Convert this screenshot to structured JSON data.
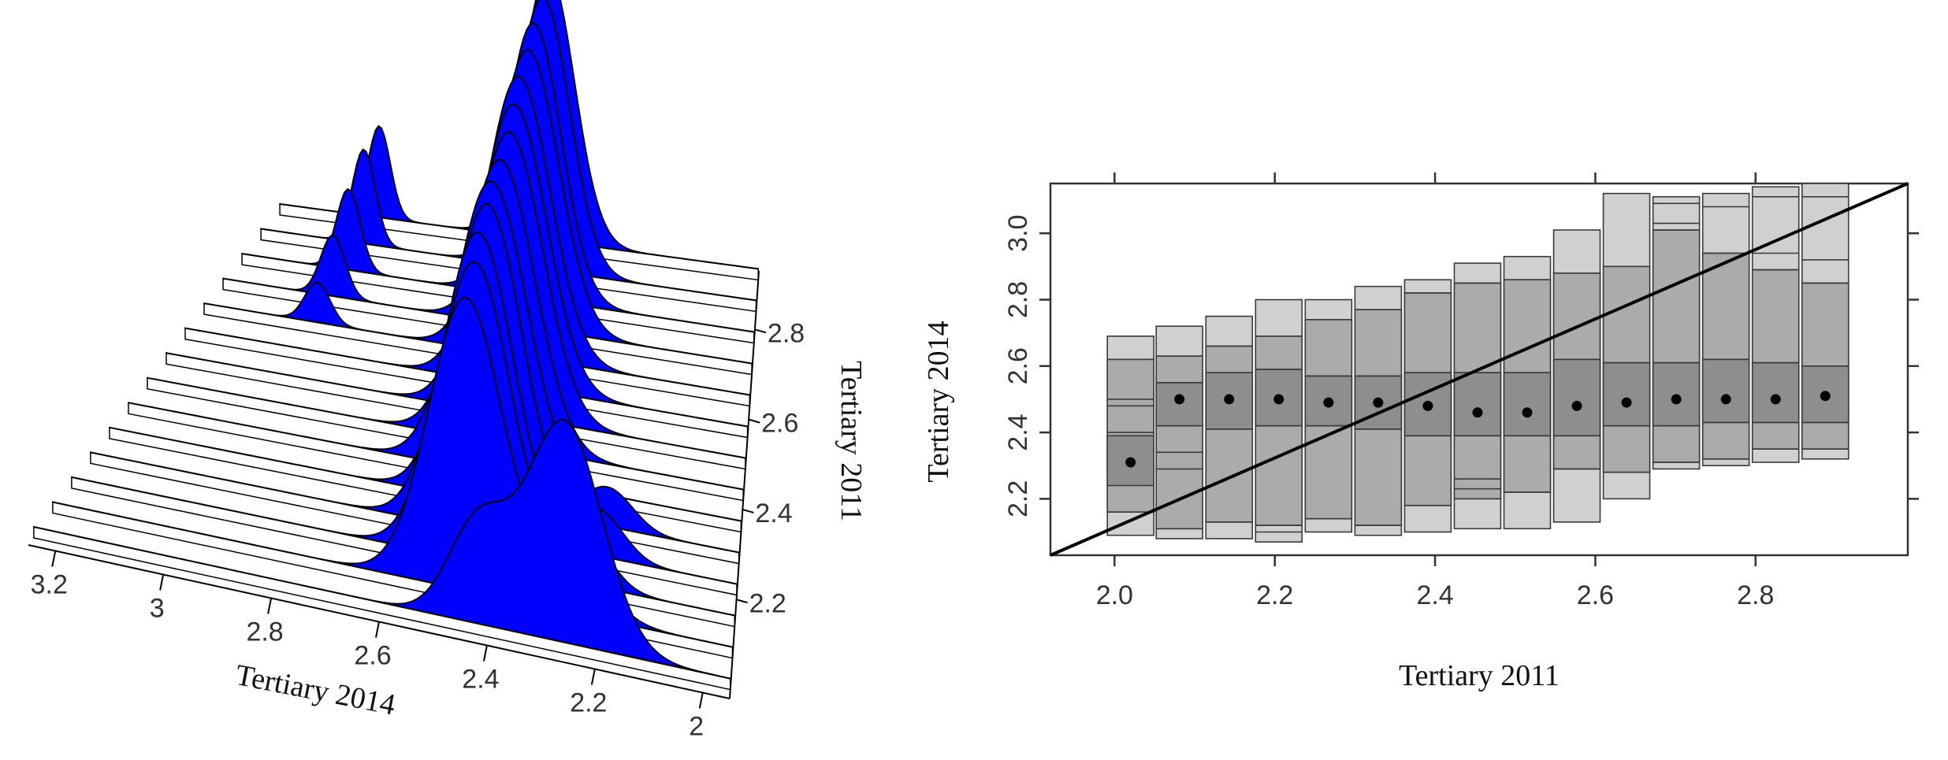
{
  "chart_data": [
    {
      "type": "area",
      "subtype": "3d-perspective-ridgeline",
      "title": "",
      "xlabel": "Tertiary 2014",
      "ylabel": "Tertiary 2011",
      "x_ticks": [
        "3.2",
        "3",
        "2.8",
        "2.6",
        "2.4",
        "2.2",
        "2"
      ],
      "y_ticks": [
        "2.2",
        "2.4",
        "2.6",
        "2.8"
      ],
      "x_range": [
        1.95,
        3.25
      ],
      "y_range": [
        1.98,
        2.93
      ],
      "fill_color": "#0000ff",
      "ridge_count": 14,
      "ridges": [
        {
          "tertiary_2011": 2.0,
          "components": [
            [
              2.42,
              0.055,
              0.28
            ],
            [
              2.26,
              0.07,
              0.62
            ]
          ]
        },
        {
          "tertiary_2011": 2.07,
          "components": [
            [
              2.46,
              0.07,
              0.84
            ],
            [
              2.26,
              0.06,
              0.2
            ]
          ]
        },
        {
          "tertiary_2011": 2.14,
          "components": [
            [
              2.46,
              0.07,
              0.88
            ],
            [
              2.25,
              0.05,
              0.16
            ]
          ]
        },
        {
          "tertiary_2011": 2.21,
          "components": [
            [
              2.47,
              0.07,
              0.9
            ],
            [
              2.23,
              0.05,
              0.14
            ]
          ]
        },
        {
          "tertiary_2011": 2.28,
          "components": [
            [
              2.47,
              0.07,
              0.92
            ],
            [
              2.22,
              0.05,
              0.12
            ]
          ]
        },
        {
          "tertiary_2011": 2.35,
          "components": [
            [
              2.48,
              0.075,
              0.92
            ]
          ]
        },
        {
          "tertiary_2011": 2.42,
          "components": [
            [
              2.48,
              0.075,
              0.92
            ]
          ]
        },
        {
          "tertiary_2011": 2.49,
          "components": [
            [
              2.48,
              0.075,
              0.94
            ]
          ]
        },
        {
          "tertiary_2011": 2.56,
          "components": [
            [
              2.49,
              0.075,
              0.96
            ]
          ]
        },
        {
          "tertiary_2011": 2.63,
          "components": [
            [
              2.5,
              0.075,
              0.98
            ],
            [
              2.98,
              0.03,
              0.14
            ]
          ]
        },
        {
          "tertiary_2011": 2.7,
          "components": [
            [
              2.5,
              0.075,
              1.0
            ],
            [
              2.98,
              0.03,
              0.22
            ]
          ]
        },
        {
          "tertiary_2011": 2.77,
          "components": [
            [
              2.51,
              0.07,
              1.02
            ],
            [
              2.98,
              0.03,
              0.3
            ]
          ]
        },
        {
          "tertiary_2011": 2.84,
          "components": [
            [
              2.51,
              0.07,
              1.04
            ],
            [
              2.98,
              0.03,
              0.36
            ]
          ]
        },
        {
          "tertiary_2011": 2.91,
          "components": [
            [
              2.52,
              0.07,
              1.06
            ],
            [
              2.98,
              0.03,
              0.36
            ]
          ]
        }
      ]
    },
    {
      "type": "box",
      "subtype": "hdr-boxplot",
      "title": "",
      "xlabel": "Tertiary 2011",
      "ylabel": "Tertiary 2014",
      "x_ticks": [
        2.0,
        2.2,
        2.4,
        2.6,
        2.8
      ],
      "y_ticks": [
        2.2,
        2.4,
        2.6,
        2.8,
        3.0
      ],
      "xlim": [
        1.92,
        2.99
      ],
      "ylim": [
        2.03,
        3.15
      ],
      "grid": false,
      "colors": {
        "outer": "#d0d0d0",
        "middle": "#ababab",
        "inner": "#8e8e8e",
        "mode": "#000000",
        "diagonal": "#000000"
      },
      "diagonal_line": {
        "from": [
          1.92,
          2.03
        ],
        "to": [
          2.99,
          3.15
        ]
      },
      "groups": [
        {
          "x": 2.02,
          "outer": [
            2.09,
            2.69
          ],
          "middle": [
            2.16,
            2.62
          ],
          "inner": [
            2.24,
            2.39
          ],
          "mode": 2.31,
          "lines": [
            2.16,
            2.4,
            2.48,
            2.5,
            2.62
          ]
        },
        {
          "x": 2.081,
          "outer": [
            2.08,
            2.72
          ],
          "middle": [
            2.11,
            2.63
          ],
          "inner": [
            2.42,
            2.55
          ],
          "mode": 2.5,
          "lines": [
            2.11,
            2.29,
            2.34,
            2.42,
            2.55,
            2.63
          ]
        },
        {
          "x": 2.143,
          "outer": [
            2.08,
            2.75
          ],
          "middle": [
            2.13,
            2.66
          ],
          "inner": [
            2.41,
            2.58
          ],
          "mode": 2.5,
          "lines": [
            2.13,
            2.41,
            2.58,
            2.66
          ]
        },
        {
          "x": 2.205,
          "outer": [
            2.07,
            2.8
          ],
          "middle": [
            2.12,
            2.69
          ],
          "inner": [
            2.42,
            2.59
          ],
          "mode": 2.5,
          "lines": [
            2.1,
            2.12,
            2.42,
            2.59,
            2.69
          ]
        },
        {
          "x": 2.267,
          "outer": [
            2.1,
            2.8
          ],
          "middle": [
            2.14,
            2.74
          ],
          "inner": [
            2.42,
            2.57
          ],
          "mode": 2.49,
          "lines": [
            2.14,
            2.42,
            2.57,
            2.74
          ]
        },
        {
          "x": 2.329,
          "outer": [
            2.09,
            2.84
          ],
          "middle": [
            2.12,
            2.77
          ],
          "inner": [
            2.41,
            2.57
          ],
          "mode": 2.49,
          "lines": [
            2.12,
            2.41,
            2.57,
            2.77
          ]
        },
        {
          "x": 2.391,
          "outer": [
            2.1,
            2.86
          ],
          "middle": [
            2.18,
            2.82
          ],
          "inner": [
            2.39,
            2.58
          ],
          "mode": 2.48,
          "lines": [
            2.18,
            2.39,
            2.58,
            2.82
          ]
        },
        {
          "x": 2.453,
          "outer": [
            2.11,
            2.91
          ],
          "middle": [
            2.2,
            2.85
          ],
          "inner": [
            2.39,
            2.58
          ],
          "mode": 2.46,
          "lines": [
            2.2,
            2.23,
            2.26,
            2.39,
            2.58,
            2.85
          ]
        },
        {
          "x": 2.515,
          "outer": [
            2.11,
            2.93
          ],
          "middle": [
            2.22,
            2.86
          ],
          "inner": [
            2.39,
            2.58
          ],
          "mode": 2.46,
          "lines": [
            2.22,
            2.39,
            2.58,
            2.86
          ]
        },
        {
          "x": 2.577,
          "outer": [
            2.13,
            3.01
          ],
          "middle": [
            2.29,
            2.88
          ],
          "inner": [
            2.39,
            2.62
          ],
          "mode": 2.48,
          "lines": [
            2.29,
            2.39,
            2.62,
            2.88
          ]
        },
        {
          "x": 2.639,
          "outer": [
            2.2,
            3.12
          ],
          "middle": [
            2.28,
            2.9
          ],
          "inner": [
            2.42,
            2.61
          ],
          "mode": 2.49,
          "lines": [
            2.28,
            2.42,
            2.61,
            2.9
          ]
        },
        {
          "x": 2.701,
          "outer": [
            2.29,
            3.11
          ],
          "middle": [
            2.31,
            3.01
          ],
          "inner": [
            2.42,
            2.61
          ],
          "mode": 2.5,
          "lines": [
            2.31,
            2.42,
            2.61,
            3.01,
            3.03,
            3.09
          ]
        },
        {
          "x": 2.763,
          "outer": [
            2.3,
            3.12
          ],
          "middle": [
            2.32,
            2.94
          ],
          "inner": [
            2.43,
            2.62
          ],
          "mode": 2.5,
          "lines": [
            2.32,
            2.43,
            2.62,
            2.94,
            3.08
          ]
        },
        {
          "x": 2.825,
          "outer": [
            2.31,
            3.14
          ],
          "middle": [
            2.35,
            2.89
          ],
          "inner": [
            2.43,
            2.61
          ],
          "mode": 2.5,
          "lines": [
            2.35,
            2.43,
            2.61,
            2.89,
            2.94,
            3.11
          ]
        },
        {
          "x": 2.887,
          "outer": [
            2.32,
            3.15
          ],
          "middle": [
            2.35,
            2.85
          ],
          "inner": [
            2.43,
            2.6
          ],
          "mode": 2.51,
          "lines": [
            2.35,
            2.43,
            2.6,
            2.85,
            2.92,
            3.11
          ]
        }
      ]
    }
  ]
}
